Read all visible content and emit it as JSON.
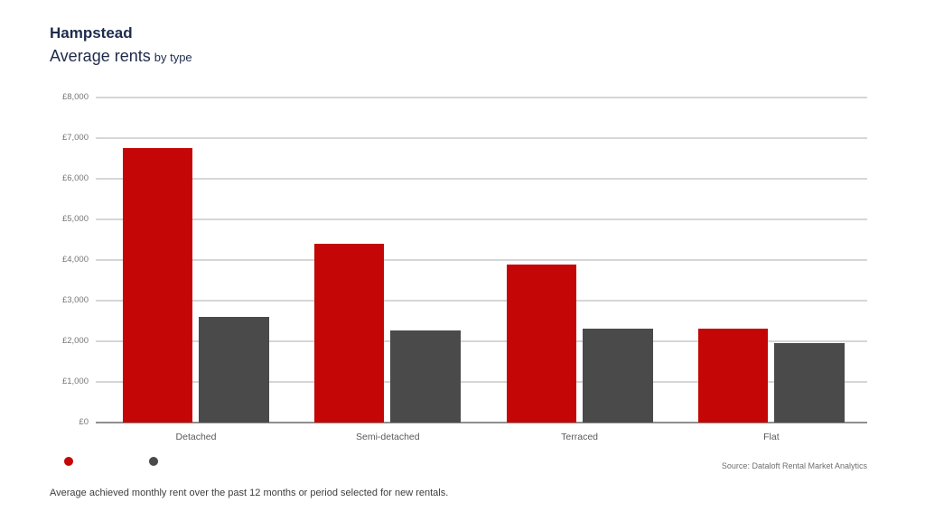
{
  "header": {
    "title": "Hampstead",
    "subtitle": "Average rents",
    "subtitle_suffix": "by type",
    "brand_color": "#1e2b4c"
  },
  "chart_data": {
    "type": "bar",
    "title": "Hampstead — Average rents by type",
    "categories": [
      "Detached",
      "Semi-detached",
      "Terraced",
      "Flat"
    ],
    "series": [
      {
        "name": "red-series",
        "color": "#c40606",
        "values": [
          6750,
          4390,
          3880,
          2320
        ]
      },
      {
        "name": "grey-series",
        "color": "#4a4a4a",
        "values": [
          2610,
          2260,
          2310,
          1950
        ]
      }
    ],
    "xlabel": "",
    "ylabel": "",
    "ylim": [
      0,
      8000
    ],
    "ytick_step": 1000,
    "ytick_labels": [
      "£0",
      "£1,000",
      "£2,000",
      "£3,000",
      "£4,000",
      "£5,000",
      "£6,000",
      "£7,000",
      "£8,000"
    ],
    "grid": true,
    "legend_position": "bottom-left",
    "legend_labels_visible": false
  },
  "footer": {
    "source": "Source: Dataloft Rental Market Analytics",
    "caption": "Average achieved monthly rent over the past 12 months or period selected for new rentals."
  }
}
